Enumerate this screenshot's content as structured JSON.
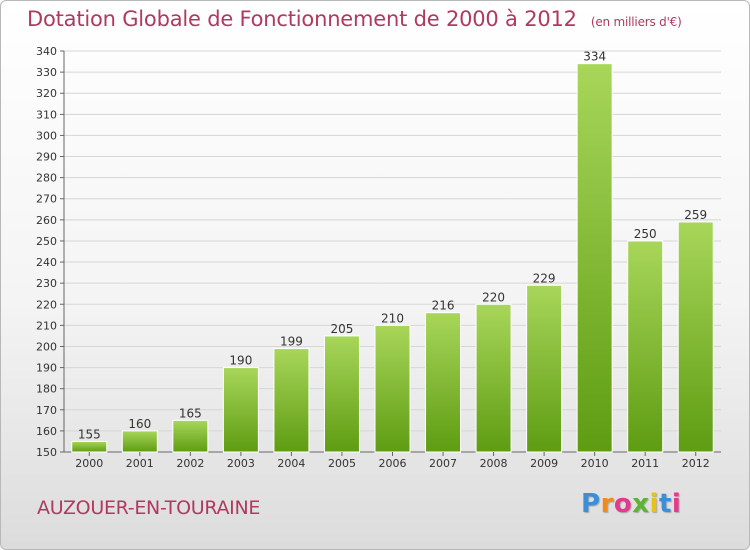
{
  "header": {
    "title": "Dotation Globale de Fonctionnement de 2000 à 2012",
    "unit": "(en milliers d'€)"
  },
  "footer": {
    "commune": "AUZOUER-EN-TOURAINE",
    "logo_text": "Proxiti"
  },
  "colors": {
    "bar_light": "#a8d65a",
    "bar_dark": "#5e9c12",
    "title": "#b03a5e",
    "logo": [
      "#3a8fd8",
      "#f08a1c",
      "#e23a8c",
      "#5bb52e",
      "#e8c21a",
      "#3a8fd8",
      "#e23a8c"
    ]
  },
  "chart_data": {
    "type": "bar",
    "title": "Dotation Globale de Fonctionnement de 2000 à 2012",
    "categories": [
      "2000",
      "2001",
      "2002",
      "2003",
      "2004",
      "2005",
      "2006",
      "2007",
      "2008",
      "2009",
      "2010",
      "2011",
      "2012"
    ],
    "values": [
      155,
      160,
      165,
      190,
      199,
      205,
      210,
      216,
      220,
      229,
      334,
      250,
      259
    ],
    "ylim": [
      150,
      340
    ],
    "yticks": [
      150,
      160,
      170,
      180,
      190,
      200,
      210,
      220,
      230,
      240,
      250,
      260,
      270,
      280,
      290,
      300,
      310,
      320,
      330,
      340
    ],
    "grid": true,
    "data_labels": true
  }
}
